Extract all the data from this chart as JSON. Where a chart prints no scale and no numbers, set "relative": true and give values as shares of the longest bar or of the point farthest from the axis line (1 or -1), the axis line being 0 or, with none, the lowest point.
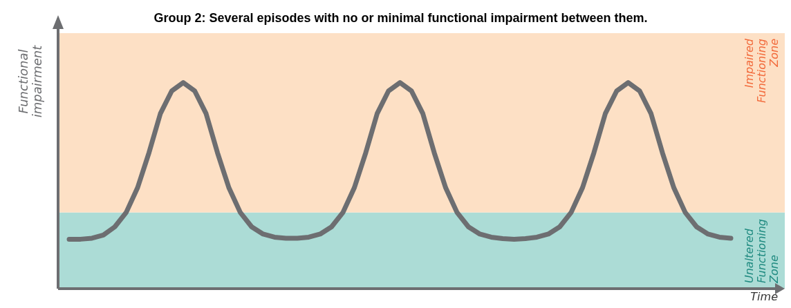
{
  "chart_data": {
    "type": "line",
    "title": "Group 2: Several episodes with no or minimal functional impairment between them.",
    "xlabel": "Time",
    "ylabel": "Functional impairment",
    "relative": true,
    "categories": [
      null,
      null,
      null,
      null,
      null,
      null,
      null,
      null,
      null,
      null,
      null,
      null,
      null,
      null,
      null,
      null,
      null,
      null,
      null,
      null,
      null,
      null,
      null,
      null,
      null,
      null,
      null,
      null,
      null,
      null,
      null,
      null,
      null,
      null,
      null,
      null,
      null,
      null,
      null,
      null,
      null,
      null,
      null,
      null,
      null,
      null,
      null,
      null,
      null,
      null,
      null,
      null,
      null,
      null,
      null,
      null,
      null,
      null,
      null
    ],
    "series": [
      {
        "color": "#6d6e71",
        "line_style": "solid",
        "values": [
          0.24,
          0.24,
          0.245,
          0.26,
          0.3,
          0.37,
          0.49,
          0.66,
          0.85,
          0.96,
          1.0,
          0.96,
          0.85,
          0.66,
          0.49,
          0.37,
          0.3,
          0.265,
          0.25,
          0.245,
          0.245,
          0.25,
          0.265,
          0.3,
          0.37,
          0.49,
          0.66,
          0.85,
          0.96,
          1.0,
          0.96,
          0.85,
          0.66,
          0.49,
          0.37,
          0.3,
          0.265,
          0.25,
          0.243,
          0.24,
          0.243,
          0.25,
          0.265,
          0.3,
          0.37,
          0.49,
          0.66,
          0.85,
          0.96,
          1.0,
          0.96,
          0.85,
          0.66,
          0.49,
          0.37,
          0.3,
          0.265,
          0.25,
          0.245
        ]
      }
    ],
    "bands": [
      {
        "axis": "y",
        "from": 0,
        "to": 0.37,
        "label": "Unaltered Functioning Zone",
        "color": "#acdcd6"
      },
      {
        "axis": "y",
        "from": 0.37,
        "to": 1.24,
        "label": "Impaired Functioning Zone",
        "color": "#fde0c5"
      }
    ]
  }
}
